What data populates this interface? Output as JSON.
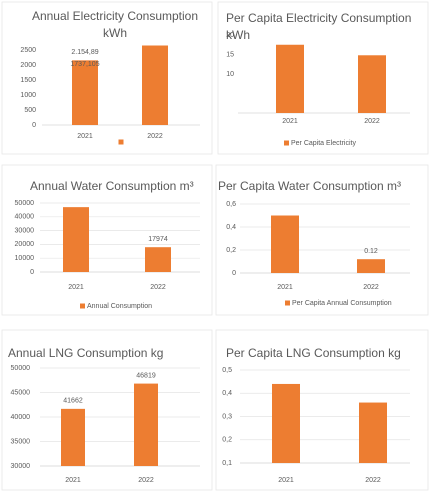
{
  "chart_data": [
    {
      "type": "bar",
      "title": "Annual Electricity Consumption kWh",
      "categories": [
        "2021",
        "2022"
      ],
      "series": [
        {
          "color": "#ed7d31",
          "values": [
            2154.89,
            2650
          ],
          "value_labels": [
            "2.154,89",
            null
          ]
        }
      ],
      "annotations": [
        "1737,105"
      ],
      "ylim": [
        0,
        2700
      ],
      "yticks": [
        0,
        500,
        1000,
        1500,
        2000,
        2500
      ],
      "grid": false,
      "legend": "bottom"
    },
    {
      "type": "bar",
      "title": "Per Capita Electricity Consumption kWh",
      "categories": [
        "2021",
        "2022"
      ],
      "series": [
        {
          "name": "Per Capita Electricity",
          "color": "#ed7d31",
          "values": [
            17.5,
            14.8
          ]
        }
      ],
      "ylim": [
        0,
        20
      ],
      "yticks": [
        10,
        15,
        20
      ],
      "grid": false,
      "legend": "bottom"
    },
    {
      "type": "bar",
      "title": "Annual Water Consumption m³",
      "categories": [
        "2021",
        "2022"
      ],
      "series": [
        {
          "name": "Annual Consumption",
          "color": "#ed7d31",
          "values": [
            47000,
            17974
          ],
          "value_labels": [
            null,
            "17974"
          ]
        }
      ],
      "ylim": [
        0,
        50000
      ],
      "yticks": [
        0,
        10000,
        20000,
        30000,
        40000,
        50000
      ],
      "grid": true,
      "legend": "bottom"
    },
    {
      "type": "bar",
      "title": "Per Capita Water Consumption m³",
      "categories": [
        "2021",
        "2022"
      ],
      "series": [
        {
          "name": "Per Capita Annual Consumption",
          "color": "#ed7d31",
          "values": [
            0.5,
            0.12
          ],
          "value_labels": [
            null,
            "0.12"
          ]
        }
      ],
      "ylim": [
        0,
        0.6
      ],
      "yticks": [
        0,
        {
          "value": 0.2,
          "label": "0,2"
        },
        {
          "value": 0.4,
          "label": "0,4"
        },
        {
          "value": 0.6,
          "label": "0,6"
        }
      ],
      "grid": true,
      "legend": "bottom"
    },
    {
      "type": "bar",
      "title": "Annual LNG Consumption kg",
      "categories": [
        "2021",
        "2022"
      ],
      "series": [
        {
          "color": "#ed7d31",
          "values": [
            41662,
            46819
          ],
          "value_labels": [
            "41662",
            "46819"
          ]
        }
      ],
      "ylim": [
        30000,
        50000
      ],
      "yticks": [
        30000,
        35000,
        40000,
        45000,
        50000
      ],
      "grid": true
    },
    {
      "type": "bar",
      "title": "Per Capita LNG Consumption kg",
      "categories": [
        "2021",
        "2022"
      ],
      "series": [
        {
          "color": "#ed7d31",
          "values": [
            0.44,
            0.36
          ]
        }
      ],
      "ylim": [
        0.1,
        0.5
      ],
      "yticks": [
        {
          "value": 0.1,
          "label": "0,1"
        },
        {
          "value": 0.2,
          "label": "0,2"
        },
        {
          "value": 0.3,
          "label": "0,3"
        },
        {
          "value": 0.4,
          "label": "0,4"
        },
        {
          "value": 0.5,
          "label": "0,5"
        }
      ],
      "grid": true
    }
  ]
}
